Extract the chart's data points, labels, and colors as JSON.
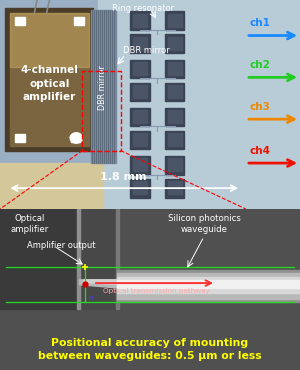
{
  "fig_width": 3.0,
  "fig_height": 3.7,
  "dpi": 100,
  "top_bg": "#9aafc4",
  "top_bg_right": "#b8ccd8",
  "chip_outer": "#4a3c28",
  "chip_inner": "#7a6540",
  "chip_highlight": "#c8a860",
  "dbr_zone": "#8898aa",
  "ring_dark": "#3a4455",
  "ring_mid": "#4a5568",
  "channels": [
    {
      "label": "ch1",
      "color": "#1a88ff"
    },
    {
      "label": "ch2",
      "color": "#22cc22"
    },
    {
      "label": "ch3",
      "color": "#ee8800"
    },
    {
      "label": "ch4",
      "color": "#ee1100"
    }
  ],
  "dim_label": "1.8 mm",
  "dim_color": "white",
  "ring_label": "Ring resonator",
  "dbr_label": "DBR mirror",
  "chip_label": "4-channel\noptical\namplifier",
  "bottom_bg_left": "#4a4a4a",
  "bottom_bg_right": "#606060",
  "bottom_bg_dark": "#383838",
  "waveguide_light": "#e8e8e8",
  "waveguide_mid": "#c0c0c0",
  "caption": "Positional accuracy of mounting\nbetween waveguides: 0.5 μm or less",
  "caption_color": "#ffff00",
  "caption_fontsize": 7.8
}
